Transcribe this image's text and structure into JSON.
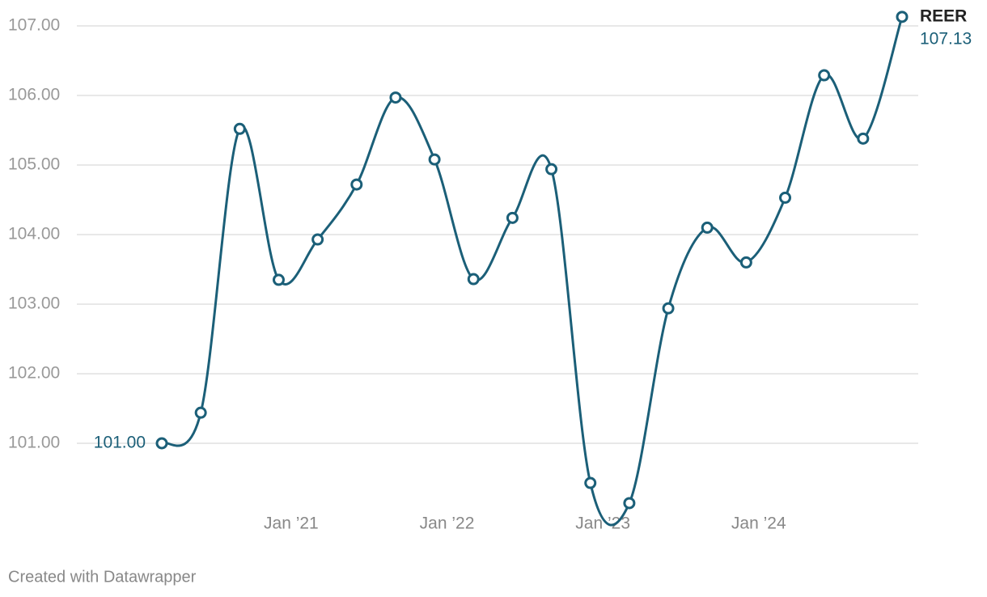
{
  "chart_data": {
    "type": "line",
    "x": [
      2020.17,
      2020.42,
      2020.67,
      2020.92,
      2021.17,
      2021.42,
      2021.67,
      2021.92,
      2022.17,
      2022.42,
      2022.67,
      2022.92,
      2023.17,
      2023.42,
      2023.67,
      2023.92,
      2024.17,
      2024.42,
      2024.67,
      2024.92
    ],
    "series": [
      {
        "name": "REER",
        "color": "#1b5f78",
        "values": [
          101.0,
          101.44,
          105.52,
          103.35,
          103.93,
          104.72,
          105.97,
          105.08,
          103.36,
          104.24,
          104.94,
          100.43,
          100.14,
          102.94,
          104.1,
          103.6,
          104.53,
          106.29,
          105.38,
          107.13
        ],
        "value_labels": [
          "101.00",
          null,
          null,
          null,
          null,
          null,
          null,
          null,
          null,
          null,
          null,
          null,
          null,
          null,
          null,
          null,
          null,
          null,
          null,
          "107.13"
        ]
      }
    ],
    "xlim": [
      2020.17,
      2024.92
    ],
    "xticks": [
      {
        "value": 2021,
        "label": "Jan ’21"
      },
      {
        "value": 2022,
        "label": "Jan ’22"
      },
      {
        "value": 2023,
        "label": "Jan ’23"
      },
      {
        "value": 2024,
        "label": "Jan ’24"
      }
    ],
    "ylim": [
      100,
      107.2
    ],
    "yticks": [
      {
        "value": 101,
        "label": "101.00"
      },
      {
        "value": 102,
        "label": "102.00"
      },
      {
        "value": 103,
        "label": "103.00"
      },
      {
        "value": 104,
        "label": "104.00"
      },
      {
        "value": 105,
        "label": "105.00"
      },
      {
        "value": 106,
        "label": "106.00"
      },
      {
        "value": 107,
        "label": "107.00"
      }
    ],
    "grid": true,
    "footer": "Created with Datawrapper"
  }
}
